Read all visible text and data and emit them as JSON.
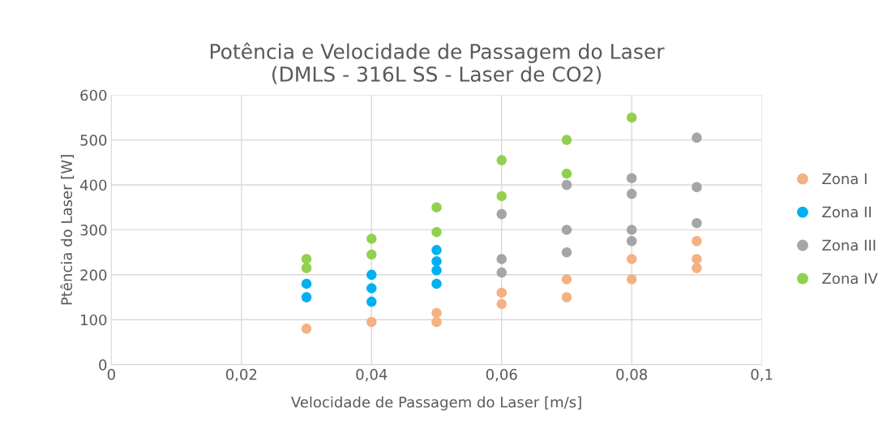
{
  "chart_data": {
    "type": "scatter",
    "title": "Potência e Velocidade de Passagem do Laser\n(DMLS - 316L SS - Laser de CO2)",
    "xlabel": "Velocidade de Passagem do Laser [m/s]",
    "ylabel": "Ptência do Laser [W]",
    "xlim": [
      0,
      0.1
    ],
    "xticks": [
      0,
      {
        "value": 0.02,
        "label": "0,02"
      },
      {
        "value": 0.04,
        "label": "0,04"
      },
      {
        "value": 0.06,
        "label": "0,06"
      },
      {
        "value": 0.08,
        "label": "0,08"
      },
      {
        "value": 0.1,
        "label": "0,1"
      }
    ],
    "ylim": [
      0,
      600
    ],
    "yticks": [
      0,
      100,
      200,
      300,
      400,
      500,
      600
    ],
    "grid": true,
    "legend": "right",
    "marker": "circle",
    "series": [
      {
        "name": "Zona I",
        "color": "#f4b183",
        "x": [
          0.03,
          0.04,
          0.05,
          0.05,
          0.06,
          0.06,
          0.07,
          0.07,
          0.08,
          0.08,
          0.09,
          0.09,
          0.09
        ],
        "values": [
          80,
          95,
          115,
          95,
          160,
          135,
          190,
          150,
          235,
          190,
          275,
          235,
          215
        ]
      },
      {
        "name": "Zona II",
        "color": "#00b0f0",
        "x": [
          0.03,
          0.03,
          0.04,
          0.04,
          0.04,
          0.05,
          0.05,
          0.05,
          0.05
        ],
        "values": [
          180,
          150,
          200,
          170,
          140,
          255,
          230,
          210,
          180
        ]
      },
      {
        "name": "Zona III",
        "color": "#a5a5a5",
        "x": [
          0.06,
          0.06,
          0.06,
          0.07,
          0.07,
          0.07,
          0.08,
          0.08,
          0.08,
          0.08,
          0.09,
          0.09,
          0.09
        ],
        "values": [
          335,
          235,
          205,
          400,
          300,
          250,
          415,
          380,
          300,
          275,
          505,
          395,
          315
        ]
      },
      {
        "name": "Zona IV",
        "color": "#92d050",
        "x": [
          0.03,
          0.03,
          0.04,
          0.04,
          0.05,
          0.05,
          0.06,
          0.06,
          0.07,
          0.07,
          0.08
        ],
        "values": [
          235,
          215,
          280,
          245,
          350,
          295,
          455,
          375,
          500,
          425,
          550
        ]
      }
    ]
  }
}
